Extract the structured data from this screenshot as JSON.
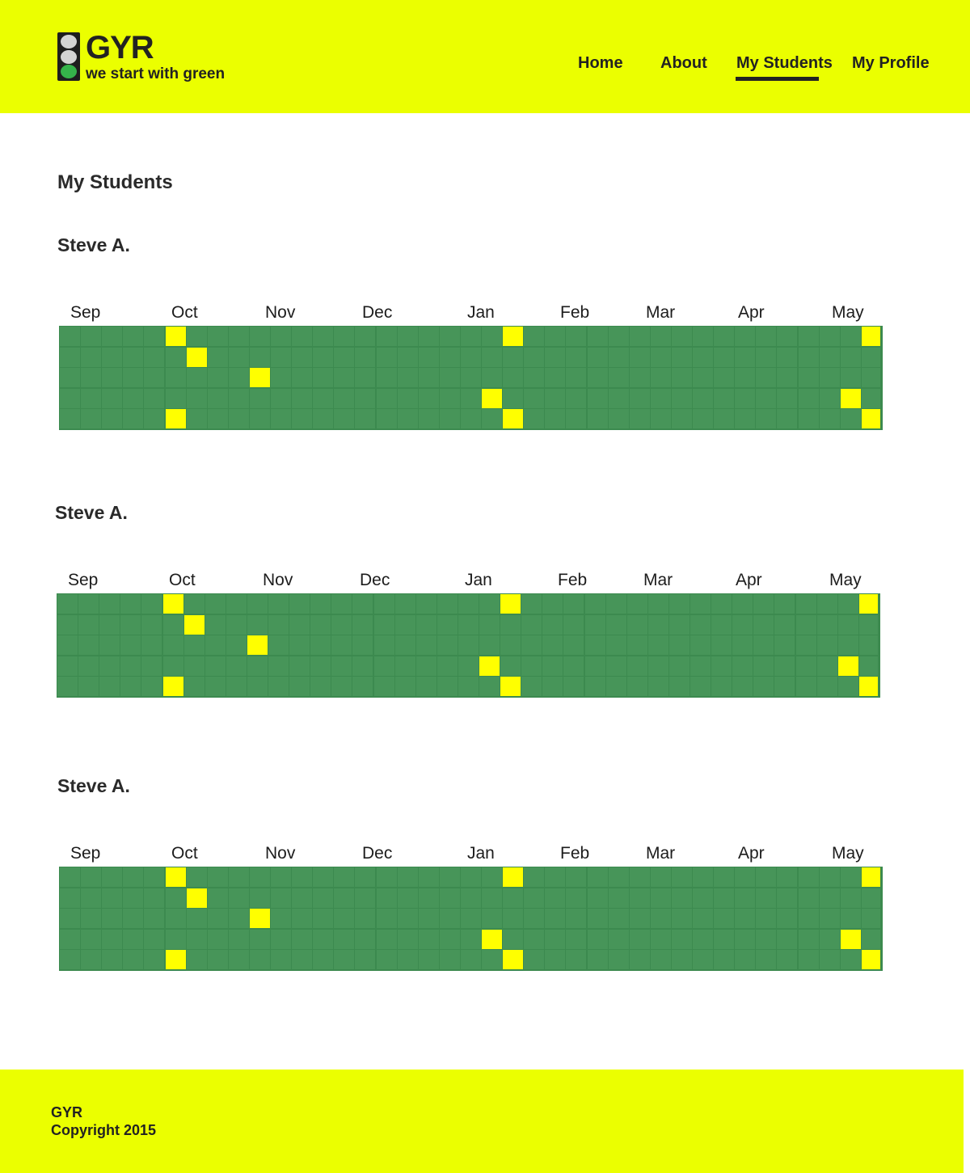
{
  "brand": {
    "name": "GYR",
    "tagline": "we start with green",
    "logo_icon": "traffic-light-icon",
    "colors": {
      "header_bg": "#ebff00",
      "green_cell": "#479559",
      "yellow_cell": "#ffff00",
      "text": "#2a2a2a"
    }
  },
  "nav": {
    "items": [
      {
        "label": "Home"
      },
      {
        "label": "About"
      },
      {
        "label": "My Students",
        "active": true
      },
      {
        "label": "My Profile"
      }
    ]
  },
  "page": {
    "title": "My Students"
  },
  "months": [
    "Sep",
    "Oct",
    "Nov",
    "Dec",
    "Jan",
    "Feb",
    "Mar",
    "Apr",
    "May"
  ],
  "grid_rows": 5,
  "grid_cols": 39,
  "students": [
    {
      "name": "Steve A.",
      "yellow_cells": [
        [
          0,
          5
        ],
        [
          1,
          6
        ],
        [
          2,
          9
        ],
        [
          4,
          5
        ],
        [
          0,
          21
        ],
        [
          3,
          20
        ],
        [
          4,
          21
        ],
        [
          0,
          38
        ],
        [
          3,
          37
        ],
        [
          4,
          38
        ]
      ]
    },
    {
      "name": "Steve A.",
      "yellow_cells": [
        [
          0,
          5
        ],
        [
          1,
          6
        ],
        [
          2,
          9
        ],
        [
          4,
          5
        ],
        [
          0,
          21
        ],
        [
          3,
          20
        ],
        [
          4,
          21
        ],
        [
          0,
          38
        ],
        [
          3,
          37
        ],
        [
          4,
          38
        ]
      ]
    },
    {
      "name": "Steve A.",
      "yellow_cells": [
        [
          0,
          5
        ],
        [
          1,
          6
        ],
        [
          2,
          9
        ],
        [
          4,
          5
        ],
        [
          0,
          21
        ],
        [
          3,
          20
        ],
        [
          4,
          21
        ],
        [
          0,
          38
        ],
        [
          3,
          37
        ],
        [
          4,
          38
        ]
      ]
    }
  ],
  "footer": {
    "brand": "GYR",
    "copyright": "Copyright 2015"
  }
}
